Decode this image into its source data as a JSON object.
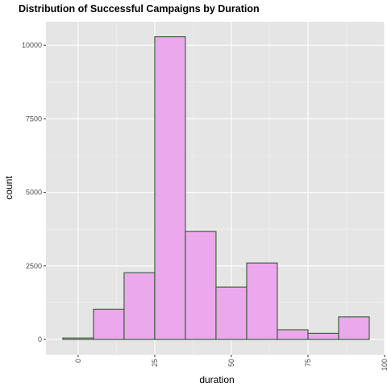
{
  "chart_data": {
    "type": "bar",
    "title": "Distribution of Successful Campaigns by Duration",
    "xlabel": "duration",
    "ylabel": "count",
    "bins": [
      {
        "x0": -5,
        "x1": 5,
        "count": 50
      },
      {
        "x0": 5,
        "x1": 15,
        "count": 1030
      },
      {
        "x0": 15,
        "x1": 25,
        "count": 2270
      },
      {
        "x0": 25,
        "x1": 35,
        "count": 10290
      },
      {
        "x0": 35,
        "x1": 45,
        "count": 3670
      },
      {
        "x0": 45,
        "x1": 55,
        "count": 1780
      },
      {
        "x0": 55,
        "x1": 65,
        "count": 2600
      },
      {
        "x0": 65,
        "x1": 75,
        "count": 330
      },
      {
        "x0": 75,
        "x1": 85,
        "count": 210
      },
      {
        "x0": 85,
        "x1": 95,
        "count": 770
      }
    ],
    "xlim": [
      -10.5,
      100
    ],
    "ylim": [
      -520,
      10800
    ],
    "x_ticks": [
      {
        "value": 0,
        "label": "0"
      },
      {
        "value": 25,
        "label": "25"
      },
      {
        "value": 50,
        "label": "50"
      },
      {
        "value": 75,
        "label": "75"
      },
      {
        "value": 100,
        "label": "100"
      }
    ],
    "y_ticks": [
      {
        "value": 0,
        "label": "0"
      },
      {
        "value": 2500,
        "label": "2500"
      },
      {
        "value": 5000,
        "label": "5000"
      },
      {
        "value": 7500,
        "label": "7500"
      },
      {
        "value": 10000,
        "label": "10000"
      }
    ],
    "grid": true,
    "colors": {
      "bar_fill": "#eba8ec",
      "bar_stroke": "#2f5c2f",
      "panel_bg": "#e5e5e5",
      "grid_major": "#ffffff",
      "grid_minor": "#f2f2f2"
    }
  }
}
